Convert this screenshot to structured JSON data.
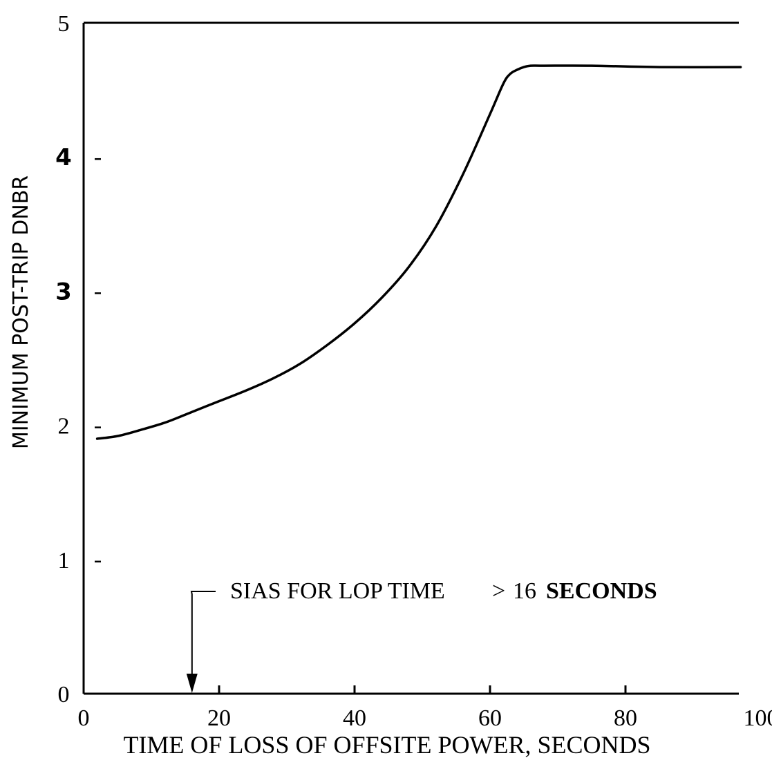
{
  "chart_data": {
    "type": "line",
    "title": "",
    "xlabel": "TIME OF LOSS OF OFFSITE POWER, SECONDS",
    "ylabel": "MINIMUM POST-TRIP DNBR",
    "xlim": [
      0,
      100
    ],
    "ylim": [
      0,
      5
    ],
    "x_ticks": [
      "0",
      "20",
      "40",
      "60",
      "80",
      "100"
    ],
    "y_ticks": [
      "0",
      "1",
      "2",
      "3",
      "4",
      "5"
    ],
    "grid": false,
    "legend": "none",
    "series": [
      {
        "x": [
          2,
          5,
          8,
          12,
          16,
          20,
          24,
          28,
          32,
          36,
          40,
          44,
          48,
          52,
          56,
          60,
          62,
          63,
          64,
          65,
          66,
          68,
          75,
          85,
          97
        ],
        "y": [
          1.9,
          1.92,
          1.96,
          2.02,
          2.1,
          2.18,
          2.26,
          2.35,
          2.46,
          2.6,
          2.76,
          2.95,
          3.18,
          3.48,
          3.87,
          4.32,
          4.55,
          4.62,
          4.65,
          4.67,
          4.68,
          4.68,
          4.68,
          4.67,
          4.67
        ]
      }
    ],
    "annotation": {
      "text_main": "SIAS FOR LOP TIME",
      "text_gt": ">",
      "text_value": "16",
      "text_unit": "SECONDS",
      "arrow_x": 16
    }
  }
}
